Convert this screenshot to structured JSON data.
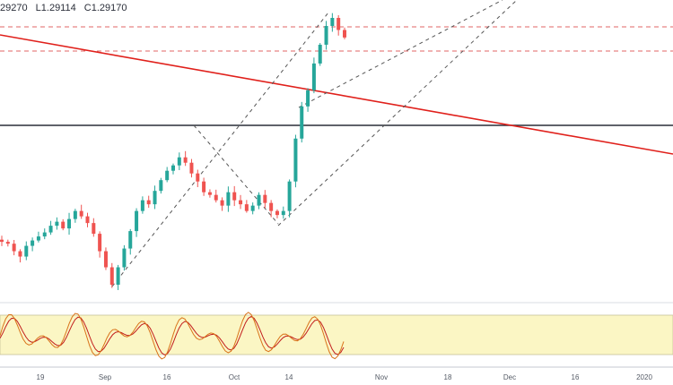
{
  "legend": {
    "open": "29270",
    "low": "L1.29114",
    "close": "C1.29170"
  },
  "colors": {
    "up": "#26a69a",
    "down": "#ef5350",
    "trendline": "#e0201b",
    "resistance_dash": "#e06666",
    "horizontal": "#2a2e39",
    "channel": "#555555",
    "stoch_k": "#d9731a",
    "stoch_d": "#c21d1d",
    "stoch_band": "#fbf6c4"
  },
  "xaxis": {
    "ticks": [
      "19",
      "Sep",
      "16",
      "Oct",
      "14",
      "Nov",
      "18",
      "Dec",
      "16",
      "2020"
    ]
  },
  "chart_data": {
    "type": "candlestick",
    "instrument_price_series": [
      1.2155,
      1.2148,
      1.212,
      1.21,
      1.214,
      1.216,
      1.2175,
      1.219,
      1.2215,
      1.223,
      1.2205,
      1.224,
      1.227,
      1.225,
      1.2225,
      1.2185,
      1.212,
      1.206,
      1.1995,
      1.206,
      1.213,
      1.2195,
      1.227,
      1.231,
      1.2295,
      1.2345,
      1.2385,
      1.242,
      1.244,
      1.247,
      1.245,
      1.241,
      1.238,
      1.234,
      1.233,
      1.231,
      1.229,
      1.234,
      1.231,
      1.2295,
      1.227,
      1.229,
      1.233,
      1.23,
      1.227,
      1.2255,
      1.227,
      1.238,
      1.254,
      1.266,
      1.272,
      1.282,
      1.289,
      1.296,
      1.299,
      1.2945,
      1.2917
    ]
  }
}
